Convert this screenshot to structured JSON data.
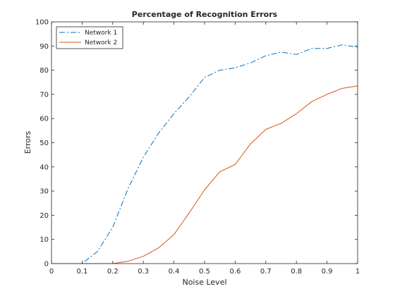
{
  "chart_data": {
    "type": "line",
    "title": "Percentage of Recognition Errors",
    "xlabel": "Noise Level",
    "ylabel": "Errors",
    "xlim": [
      0,
      1
    ],
    "ylim": [
      0,
      100
    ],
    "xticks": [
      0,
      0.1,
      0.2,
      0.3,
      0.4,
      0.5,
      0.6,
      0.7,
      0.8,
      0.9,
      1
    ],
    "yticks": [
      0,
      10,
      20,
      30,
      40,
      50,
      60,
      70,
      80,
      90,
      100
    ],
    "grid": false,
    "legend_position": "top-left",
    "x": [
      0,
      0.05,
      0.1,
      0.15,
      0.2,
      0.25,
      0.3,
      0.35,
      0.4,
      0.45,
      0.5,
      0.55,
      0.6,
      0.65,
      0.7,
      0.75,
      0.8,
      0.85,
      0.9,
      0.95,
      1.0
    ],
    "series": [
      {
        "name": "Network 1",
        "color": "#0072BD",
        "line_style": "dash-dot",
        "values": [
          0,
          0,
          0,
          5,
          15,
          31,
          44,
          54,
          62,
          69,
          77,
          80,
          81,
          83,
          86,
          87.5,
          86.5,
          89,
          89,
          90.5,
          89.5
        ]
      },
      {
        "name": "Network 2",
        "color": "#D95319",
        "line_style": "solid",
        "values": [
          0,
          0,
          0,
          0,
          0,
          1,
          3,
          6.5,
          12,
          21,
          30.5,
          38,
          41,
          49.5,
          55.5,
          58,
          62,
          67,
          70,
          72.5,
          73.5
        ]
      }
    ]
  }
}
